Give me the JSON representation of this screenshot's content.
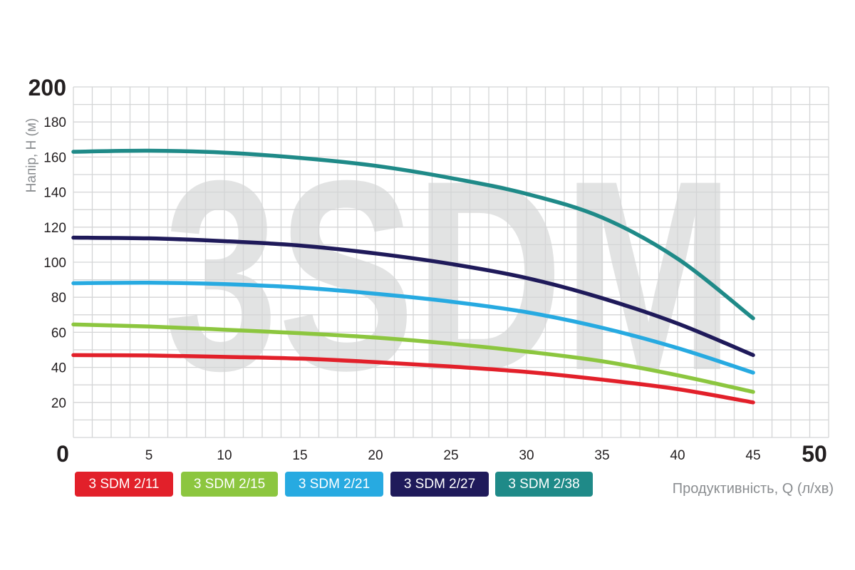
{
  "chart_data": {
    "type": "line",
    "watermark": "3SDM",
    "xlabel": "Продуктивність, Q (л/хв)",
    "ylabel": "Напір, H (м)",
    "xlim": [
      0,
      50
    ],
    "ylim": [
      0,
      200
    ],
    "grid": true,
    "x_ticks": [
      {
        "value": 0,
        "label": "0",
        "bold": true
      },
      {
        "value": 5,
        "label": "5"
      },
      {
        "value": 10,
        "label": "10"
      },
      {
        "value": 15,
        "label": "15"
      },
      {
        "value": 20,
        "label": "20"
      },
      {
        "value": 25,
        "label": "25"
      },
      {
        "value": 30,
        "label": "30"
      },
      {
        "value": 35,
        "label": "35"
      },
      {
        "value": 40,
        "label": "40"
      },
      {
        "value": 45,
        "label": "45"
      },
      {
        "value": 50,
        "label": "50",
        "bold": true
      }
    ],
    "y_ticks": [
      {
        "value": 20,
        "label": "20"
      },
      {
        "value": 40,
        "label": "40"
      },
      {
        "value": 60,
        "label": "60"
      },
      {
        "value": 80,
        "label": "80"
      },
      {
        "value": 100,
        "label": "100"
      },
      {
        "value": 120,
        "label": "120"
      },
      {
        "value": 140,
        "label": "140"
      },
      {
        "value": 160,
        "label": "160"
      },
      {
        "value": 180,
        "label": "180"
      },
      {
        "value": 200,
        "label": "200",
        "bold": true
      }
    ],
    "x": [
      0,
      5,
      10,
      15,
      20,
      25,
      30,
      35,
      40,
      45
    ],
    "series": [
      {
        "name": "3 SDM 2/11",
        "color": "#e2202a",
        "values": [
          47,
          46.8,
          46,
          45,
          43,
          40.5,
          37.4,
          33,
          27.6,
          20
        ]
      },
      {
        "name": "3 SDM 2/15",
        "color": "#8cc63f",
        "values": [
          64.5,
          63.3,
          61.5,
          59.5,
          57,
          53.5,
          49,
          43.5,
          35.5,
          26
        ]
      },
      {
        "name": "3 SDM 2/21",
        "color": "#27aae1",
        "values": [
          88,
          88.3,
          87.5,
          85.5,
          82,
          77.5,
          71.5,
          62.6,
          51,
          37
        ]
      },
      {
        "name": "3 SDM 2/27",
        "color": "#1f1a5a",
        "values": [
          114,
          113.6,
          112,
          109.5,
          105,
          99,
          91,
          79.5,
          65,
          47
        ]
      },
      {
        "name": "3 SDM 2/38",
        "color": "#1f8a88",
        "values": [
          163,
          163.6,
          162.5,
          159.5,
          155,
          148,
          139,
          125.5,
          102,
          68
        ]
      }
    ]
  }
}
